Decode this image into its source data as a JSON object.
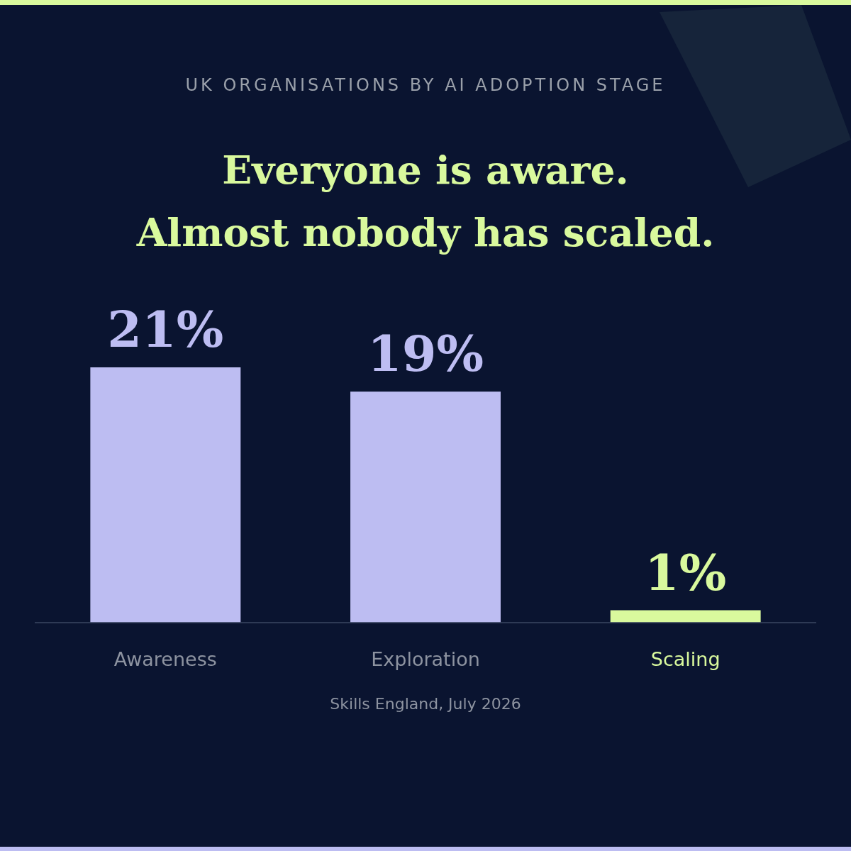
{
  "chart_data": {
    "type": "bar",
    "subtitle": "UK ORGANISATIONS BY AI ADOPTION STAGE",
    "title": "Everyone is aware.\nAlmost nobody has scaled.",
    "categories": [
      "Awareness",
      "Exploration",
      "Scaling"
    ],
    "values": [
      21,
      19,
      1
    ],
    "colors": [
      "#bdbdf2",
      "#bdbdf2",
      "#d9f99d"
    ],
    "data_labels": true,
    "value_labels": [
      "21%",
      "19%",
      "1%"
    ],
    "annotations": [
      "Skills England, July 2026"
    ]
  }
}
